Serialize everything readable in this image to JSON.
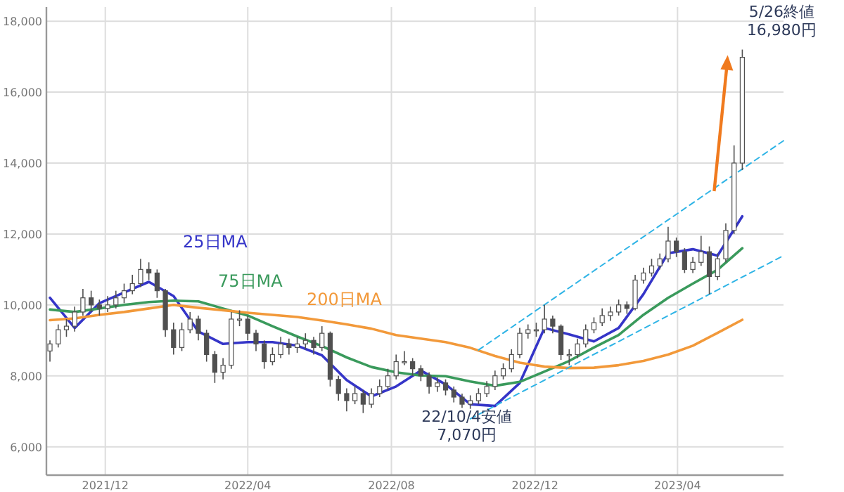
{
  "chart_data": {
    "type": "candlestick",
    "x": [
      "2021-10-15",
      "2021-10-22",
      "2021-10-29",
      "2021-11-05",
      "2021-11-12",
      "2021-11-19",
      "2021-11-26",
      "2021-12-03",
      "2021-12-10",
      "2021-12-17",
      "2021-12-24",
      "2021-12-31",
      "2022-01-07",
      "2022-01-14",
      "2022-01-21",
      "2022-01-28",
      "2022-02-04",
      "2022-02-11",
      "2022-02-18",
      "2022-02-25",
      "2022-03-04",
      "2022-03-11",
      "2022-03-18",
      "2022-03-25",
      "2022-04-01",
      "2022-04-08",
      "2022-04-15",
      "2022-04-22",
      "2022-04-29",
      "2022-05-06",
      "2022-05-13",
      "2022-05-20",
      "2022-05-27",
      "2022-06-03",
      "2022-06-10",
      "2022-06-17",
      "2022-06-24",
      "2022-07-01",
      "2022-07-08",
      "2022-07-15",
      "2022-07-22",
      "2022-07-29",
      "2022-08-05",
      "2022-08-12",
      "2022-08-19",
      "2022-08-26",
      "2022-09-02",
      "2022-09-09",
      "2022-09-16",
      "2022-09-23",
      "2022-09-30",
      "2022-10-07",
      "2022-10-14",
      "2022-10-21",
      "2022-10-28",
      "2022-11-04",
      "2022-11-11",
      "2022-11-18",
      "2022-11-25",
      "2022-12-02",
      "2022-12-09",
      "2022-12-16",
      "2022-12-23",
      "2022-12-30",
      "2023-01-06",
      "2023-01-13",
      "2023-01-20",
      "2023-01-27",
      "2023-02-03",
      "2023-02-10",
      "2023-02-17",
      "2023-02-24",
      "2023-03-03",
      "2023-03-10",
      "2023-03-17",
      "2023-03-24",
      "2023-03-31",
      "2023-04-07",
      "2023-04-14",
      "2023-04-21",
      "2023-04-28",
      "2023-05-05",
      "2023-05-12",
      "2023-05-19",
      "2023-05-26"
    ],
    "ohlc": [
      [
        8700,
        9000,
        8400,
        8900
      ],
      [
        8900,
        9450,
        8800,
        9300
      ],
      [
        9300,
        9600,
        9100,
        9400
      ],
      [
        9400,
        9950,
        9250,
        9800
      ],
      [
        9800,
        10450,
        9700,
        10200
      ],
      [
        10200,
        10400,
        9800,
        10000
      ],
      [
        10000,
        10150,
        9700,
        9900
      ],
      [
        9900,
        10250,
        9800,
        10000
      ],
      [
        10000,
        10400,
        9900,
        10200
      ],
      [
        10200,
        10600,
        10050,
        10400
      ],
      [
        10400,
        10850,
        10300,
        10600
      ],
      [
        10600,
        11300,
        10500,
        11000
      ],
      [
        11000,
        11200,
        10700,
        10900
      ],
      [
        10900,
        11000,
        10200,
        10400
      ],
      [
        10400,
        10450,
        9100,
        9300
      ],
      [
        9300,
        9500,
        8600,
        8800
      ],
      [
        8800,
        9500,
        8700,
        9300
      ],
      [
        9300,
        9800,
        9200,
        9600
      ],
      [
        9600,
        9700,
        9000,
        9200
      ],
      [
        9200,
        9300,
        8400,
        8600
      ],
      [
        8600,
        8700,
        7800,
        8100
      ],
      [
        8100,
        8500,
        7900,
        8300
      ],
      [
        8300,
        9800,
        8200,
        9600
      ],
      [
        9600,
        9850,
        9400,
        9600
      ],
      [
        9600,
        9700,
        9000,
        9200
      ],
      [
        9200,
        9300,
        8700,
        8900
      ],
      [
        8900,
        9000,
        8200,
        8400
      ],
      [
        8400,
        8800,
        8300,
        8600
      ],
      [
        8600,
        9100,
        8500,
        8900
      ],
      [
        8900,
        9050,
        8600,
        8800
      ],
      [
        8800,
        9100,
        8650,
        8900
      ],
      [
        8900,
        9200,
        8750,
        9000
      ],
      [
        9000,
        9100,
        8600,
        8800
      ],
      [
        8800,
        9400,
        8700,
        9200
      ],
      [
        9200,
        9250,
        7700,
        7900
      ],
      [
        7900,
        8000,
        7300,
        7500
      ],
      [
        7500,
        7650,
        7000,
        7300
      ],
      [
        7300,
        7700,
        7200,
        7500
      ],
      [
        7500,
        7600,
        6950,
        7200
      ],
      [
        7200,
        7650,
        7100,
        7500
      ],
      [
        7500,
        7900,
        7400,
        7700
      ],
      [
        7700,
        8200,
        7600,
        8000
      ],
      [
        8000,
        8600,
        7900,
        8400
      ],
      [
        8400,
        8700,
        8300,
        8400
      ],
      [
        8400,
        8500,
        8000,
        8200
      ],
      [
        8200,
        8300,
        7850,
        8000
      ],
      [
        8000,
        8100,
        7500,
        7700
      ],
      [
        7700,
        7950,
        7550,
        7800
      ],
      [
        7800,
        7900,
        7450,
        7600
      ],
      [
        7600,
        7700,
        7250,
        7400
      ],
      [
        7400,
        7500,
        7100,
        7200
      ],
      [
        7200,
        7450,
        7070,
        7300
      ],
      [
        7300,
        7650,
        7200,
        7500
      ],
      [
        7500,
        7850,
        7400,
        7700
      ],
      [
        7700,
        8150,
        7600,
        8000
      ],
      [
        8000,
        8350,
        7900,
        8200
      ],
      [
        8200,
        8750,
        8100,
        8600
      ],
      [
        8600,
        9350,
        8500,
        9200
      ],
      [
        9200,
        9450,
        9050,
        9300
      ],
      [
        9300,
        9500,
        9100,
        9300
      ],
      [
        9300,
        10000,
        9200,
        9600
      ],
      [
        9600,
        9700,
        9200,
        9400
      ],
      [
        9400,
        9450,
        8450,
        8600
      ],
      [
        8600,
        8750,
        8300,
        8600
      ],
      [
        8600,
        9050,
        8500,
        8900
      ],
      [
        8900,
        9450,
        8800,
        9300
      ],
      [
        9300,
        9650,
        9200,
        9500
      ],
      [
        9500,
        9900,
        9400,
        9700
      ],
      [
        9700,
        9950,
        9550,
        9800
      ],
      [
        9800,
        10150,
        9700,
        10000
      ],
      [
        10000,
        10100,
        9750,
        9900
      ],
      [
        9900,
        10850,
        9850,
        10700
      ],
      [
        10700,
        11050,
        10600,
        10900
      ],
      [
        10900,
        11300,
        10800,
        11100
      ],
      [
        11100,
        11450,
        11000,
        11300
      ],
      [
        11300,
        12200,
        11200,
        11800
      ],
      [
        11800,
        11900,
        11350,
        11500
      ],
      [
        11500,
        11600,
        10900,
        11000
      ],
      [
        11000,
        11350,
        10900,
        11200
      ],
      [
        11200,
        11950,
        11100,
        11500
      ],
      [
        11500,
        11650,
        10300,
        10800
      ],
      [
        10800,
        11450,
        10700,
        11300
      ],
      [
        11300,
        12300,
        11200,
        12100
      ],
      [
        12100,
        14500,
        12000,
        14000
      ],
      [
        14000,
        17200,
        13800,
        16980
      ]
    ],
    "color": "#505050",
    "series": [
      {
        "type": "line",
        "name": "25日MA",
        "color": "#3535c8",
        "x": [
          "2021-10-15",
          "2021-11-05",
          "2021-11-26",
          "2021-12-17",
          "2022-01-07",
          "2022-01-28",
          "2022-02-18",
          "2022-03-11",
          "2022-04-01",
          "2022-04-22",
          "2022-05-13",
          "2022-06-03",
          "2022-06-24",
          "2022-07-15",
          "2022-08-05",
          "2022-08-26",
          "2022-09-16",
          "2022-10-07",
          "2022-10-28",
          "2022-11-18",
          "2022-12-09",
          "2022-12-30",
          "2023-01-20",
          "2023-02-10",
          "2023-03-03",
          "2023-03-24",
          "2023-04-14",
          "2023-05-05",
          "2023-05-26"
        ],
        "values": [
          10200,
          9350,
          10050,
          10350,
          10650,
          10250,
          9250,
          8900,
          8950,
          8950,
          8850,
          8580,
          7880,
          7420,
          7700,
          8150,
          7760,
          7200,
          7150,
          7800,
          9350,
          9170,
          8970,
          9350,
          10300,
          11460,
          11570,
          11390,
          12500
        ]
      },
      {
        "type": "line",
        "name": "75日MA",
        "color": "#3a9a5c",
        "x": [
          "2021-10-15",
          "2021-11-05",
          "2021-11-26",
          "2021-12-17",
          "2022-01-07",
          "2022-01-28",
          "2022-02-18",
          "2022-03-11",
          "2022-04-01",
          "2022-04-22",
          "2022-05-13",
          "2022-06-03",
          "2022-06-24",
          "2022-07-15",
          "2022-08-05",
          "2022-08-26",
          "2022-09-16",
          "2022-10-07",
          "2022-10-28",
          "2022-11-18",
          "2022-12-09",
          "2022-12-30",
          "2023-01-20",
          "2023-02-10",
          "2023-03-03",
          "2023-03-24",
          "2023-04-14",
          "2023-05-05",
          "2023-05-26"
        ],
        "values": [
          9870,
          9800,
          9900,
          10000,
          10080,
          10120,
          10100,
          9900,
          9700,
          9400,
          9110,
          8840,
          8520,
          8250,
          8100,
          8010,
          7990,
          7840,
          7720,
          7830,
          8120,
          8420,
          8800,
          9150,
          9720,
          10200,
          10600,
          10990,
          11600
        ]
      },
      {
        "type": "line",
        "name": "200日MA",
        "color": "#f2993a",
        "x": [
          "2021-10-15",
          "2021-11-05",
          "2021-11-26",
          "2021-12-17",
          "2022-01-07",
          "2022-01-28",
          "2022-02-18",
          "2022-03-11",
          "2022-04-01",
          "2022-04-22",
          "2022-05-13",
          "2022-06-03",
          "2022-06-24",
          "2022-07-15",
          "2022-08-05",
          "2022-08-26",
          "2022-09-16",
          "2022-10-07",
          "2022-10-28",
          "2022-11-18",
          "2022-12-09",
          "2022-12-30",
          "2023-01-20",
          "2023-02-10",
          "2023-03-03",
          "2023-03-24",
          "2023-04-14",
          "2023-05-05",
          "2023-05-26"
        ],
        "values": [
          9570,
          9620,
          9720,
          9800,
          9900,
          10000,
          9920,
          9850,
          9780,
          9720,
          9660,
          9560,
          9450,
          9330,
          9150,
          9050,
          8950,
          8790,
          8560,
          8370,
          8260,
          8220,
          8230,
          8300,
          8420,
          8600,
          8850,
          9210,
          9580
        ]
      },
      {
        "type": "line",
        "color": "#2fb4e6",
        "line_style": "dashed",
        "x": [
          "2022-10-14",
          "2023-06-30"
        ],
        "values": [
          8730,
          14630
        ]
      },
      {
        "type": "line",
        "color": "#2fb4e6",
        "line_style": "dashed",
        "x": [
          "2022-10-07",
          "2023-06-30"
        ],
        "values": [
          6790,
          11390
        ]
      }
    ],
    "annotations": [
      {
        "text": "5/26終値\n16,980円",
        "x": "2023-05-26",
        "y": 16980
      },
      {
        "text": "22/10/4安値\n7,070円",
        "x": "2022-10-04",
        "y": 7070
      }
    ],
    "xlim": [
      "2021-10-12",
      "2023-06-30"
    ],
    "xticks": [
      {
        "value": "2021-12-01",
        "label": "2021/12"
      },
      {
        "value": "2022-04-01",
        "label": "2022/04"
      },
      {
        "value": "2022-08-01",
        "label": "2022/08"
      },
      {
        "value": "2022-12-01",
        "label": "2022/12"
      },
      {
        "value": "2023-04-01",
        "label": "2023/04"
      }
    ],
    "ylim": [
      5200,
      18400
    ],
    "yticks": [
      {
        "value": 6000,
        "label": "6,000"
      },
      {
        "value": 8000,
        "label": "8,000"
      },
      {
        "value": 10000,
        "label": "10,000"
      },
      {
        "value": 12000,
        "label": "12,000"
      },
      {
        "value": 14000,
        "label": "14,000"
      },
      {
        "value": 16000,
        "label": "16,000"
      },
      {
        "value": 18000,
        "label": "18,000"
      }
    ],
    "grid": true
  }
}
